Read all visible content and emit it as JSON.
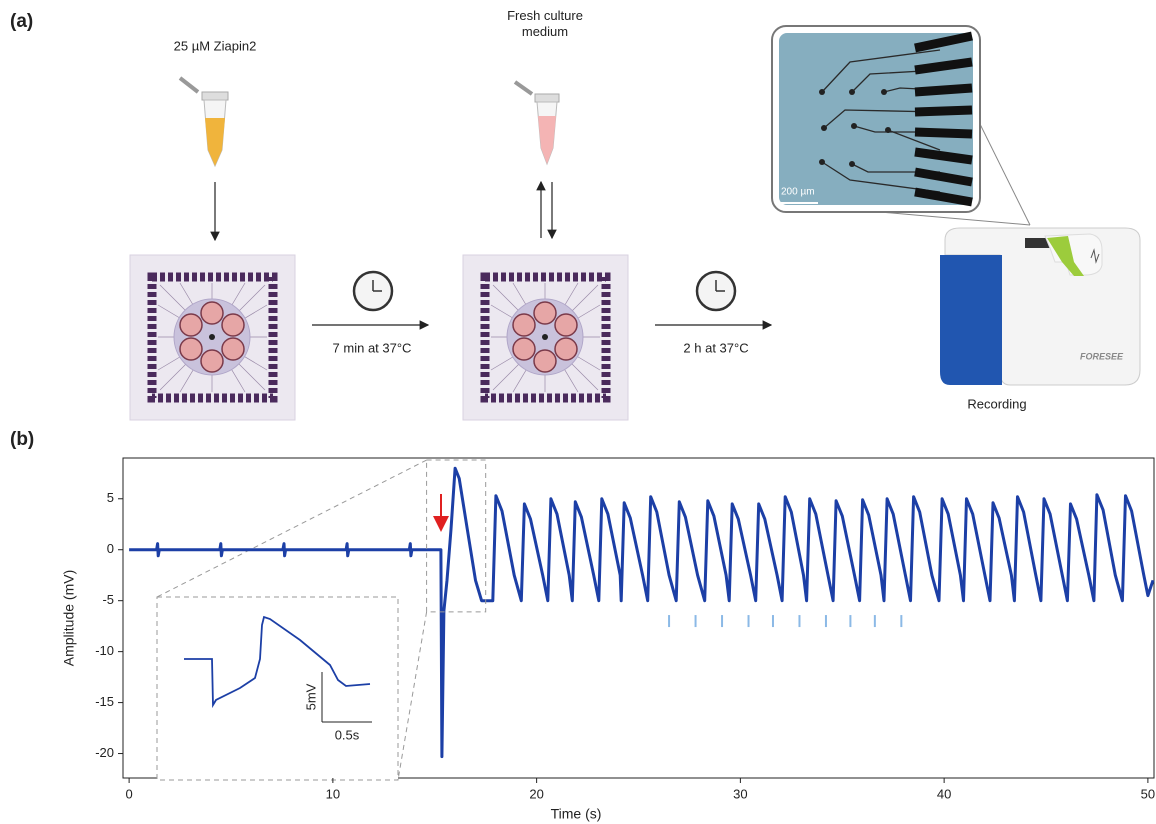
{
  "panel_a": {
    "label": "(a)",
    "reagent": "25 µM Ziapin2",
    "medium": "Fresh culture medium",
    "step1": "7 min at 37°C",
    "step2": "2 h at 37°C",
    "recording": "Recording",
    "micrograph_scale": "200 µm",
    "device_brand": "FORESEE"
  },
  "panel_b_label": "(b)",
  "chart_data": {
    "type": "line",
    "xlabel": "Time (s)",
    "ylabel": "Amplitude (mV)",
    "xlim": [
      -0.3,
      50.3
    ],
    "ylim": [
      -22.4,
      9.0
    ],
    "xticks": [
      0,
      10,
      20,
      30,
      40,
      50
    ],
    "yticks": [
      -20,
      -15,
      -10,
      -5,
      0,
      5
    ],
    "series": [
      {
        "color": "#1c3fa6",
        "x": [
          0,
          1.35,
          1.4,
          1.43,
          1.48,
          4.45,
          4.5,
          4.53,
          4.58,
          7.55,
          7.6,
          7.63,
          7.68,
          10.65,
          10.7,
          10.73,
          10.78,
          13.75,
          13.8,
          13.83,
          13.88,
          15.3,
          15.35,
          15.45,
          15.6,
          15.8,
          16.0,
          16.2,
          16.6,
          17.0,
          17.3,
          17.85,
          18.0,
          18.3,
          18.9,
          19.25,
          19.4,
          19.7,
          20.3,
          20.55,
          20.7,
          21.0,
          21.6,
          21.75,
          21.9,
          22.2,
          22.8,
          23.05,
          23.2,
          23.5,
          24.1,
          24.15,
          24.3,
          24.6,
          25.2,
          25.45,
          25.6,
          25.9,
          26.5,
          26.85,
          27.0,
          27.3,
          27.9,
          28.25,
          28.4,
          28.7,
          29.3,
          29.45,
          29.6,
          29.9,
          30.5,
          30.75,
          30.9,
          31.2,
          31.8,
          32.05,
          32.2,
          32.5,
          33.1,
          33.25,
          33.4,
          33.7,
          34.3,
          34.55,
          34.7,
          35.0,
          35.6,
          35.85,
          36.0,
          36.3,
          36.9,
          37.05,
          37.2,
          37.5,
          38.1,
          38.35,
          38.5,
          38.8,
          39.4,
          39.75,
          39.9,
          40.2,
          40.8,
          40.95,
          41.1,
          41.4,
          42.0,
          42.25,
          42.4,
          42.7,
          43.3,
          43.45,
          43.6,
          43.9,
          44.5,
          44.75,
          44.9,
          45.2,
          45.8,
          46.05,
          46.2,
          46.5,
          47.1,
          47.35,
          47.5,
          47.8,
          48.4,
          48.75,
          48.9,
          49.2,
          49.8,
          50.0,
          50.25
        ],
        "values": [
          0,
          0,
          0.6,
          -0.6,
          0,
          0,
          0.6,
          -0.6,
          0,
          0,
          0.6,
          -0.6,
          0,
          0,
          0.6,
          -0.6,
          0,
          0,
          0.6,
          -0.6,
          0,
          0,
          -20.3,
          -6,
          -3,
          2,
          8,
          7,
          2,
          -3,
          -5,
          -5,
          5.3,
          3.8,
          -2.5,
          -5,
          4.5,
          3,
          -2.5,
          -5,
          5,
          3.5,
          -2.5,
          -5,
          4.7,
          3.2,
          -2.5,
          -5,
          5,
          3.5,
          -2.5,
          -5,
          4.6,
          3.1,
          -2.5,
          -5,
          5.2,
          3.7,
          -2.5,
          -5,
          4.7,
          3.2,
          -2.5,
          -5,
          4.8,
          3.3,
          -2.5,
          -5,
          4.5,
          3,
          -2.5,
          -5,
          4.5,
          3,
          -2.5,
          -5,
          5.2,
          3.7,
          -2.5,
          -5,
          5,
          3.5,
          -2.5,
          -5,
          4.8,
          3.3,
          -2.5,
          -5,
          4.9,
          3.4,
          -2.5,
          -5,
          5,
          3.5,
          -2.5,
          -5,
          5.2,
          3.7,
          -2.5,
          -5,
          5,
          3.5,
          -2.5,
          -5,
          5,
          3.5,
          -2.5,
          -5,
          4.6,
          3.1,
          -2.5,
          -5,
          5.2,
          3.7,
          -2.5,
          -5,
          5,
          3.5,
          -2.5,
          -5,
          4.5,
          3,
          -2.5,
          -5,
          5.4,
          3.9,
          -2.5,
          -5,
          5.3,
          3.8,
          -2.5,
          -4.5,
          -3
        ]
      },
      {
        "color": "#8bb9e6",
        "marker": "tick",
        "x": [
          26.5,
          27.8,
          29.1,
          30.4,
          31.6,
          32.9,
          34.2,
          35.4,
          36.6,
          37.9
        ],
        "values": [
          -7,
          -7,
          -7,
          -7,
          -7,
          -7,
          -7,
          -7,
          -7,
          -7
        ]
      }
    ],
    "inset": {
      "zoom_xlim": [
        14.6,
        17.5
      ],
      "zoom_ylim": [
        -6.1,
        8.8
      ],
      "color": "#1c3fa6",
      "x": [
        0,
        0.28,
        0.29,
        0.32,
        0.56,
        0.71,
        0.76,
        0.78,
        0.8,
        0.86,
        1.16,
        1.46,
        1.54,
        1.62,
        1.86
      ],
      "values": [
        0,
        0,
        -4.6,
        -4.1,
        -2.9,
        -1.9,
        0,
        3.4,
        4.2,
        4.0,
        1.9,
        -0.6,
        -2.1,
        -2.7,
        -2.5
      ],
      "scale_bars": [
        {
          "value": 5,
          "label": "5mV"
        },
        {
          "value": 0.5,
          "label": "0.5s"
        }
      ]
    }
  }
}
